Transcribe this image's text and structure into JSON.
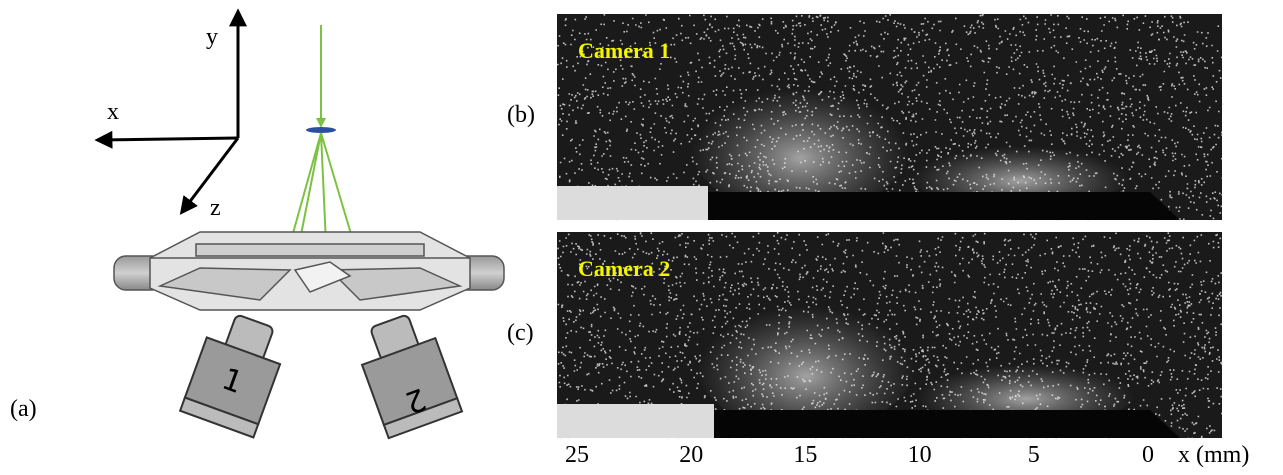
{
  "panels": {
    "a": {
      "label": "(a)",
      "axes": {
        "x": "x",
        "y": "y",
        "z": "z"
      },
      "cameras": [
        "1",
        "2"
      ]
    },
    "b": {
      "label": "(b)",
      "title": "Camera 1"
    },
    "c": {
      "label": "(c)",
      "title": "Camera 2"
    }
  },
  "x_axis": {
    "ticks": [
      25,
      20,
      15,
      10,
      5,
      0
    ],
    "label": "x (mm)"
  }
}
